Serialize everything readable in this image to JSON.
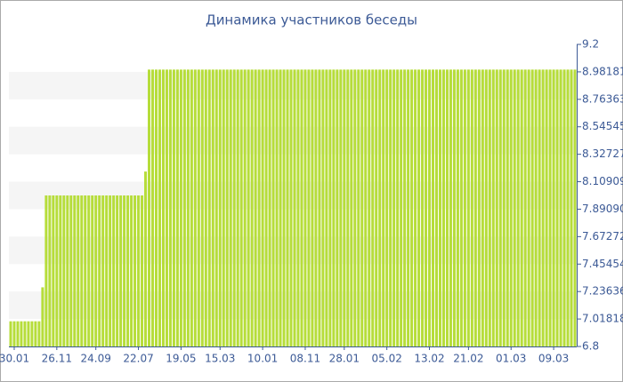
{
  "chart_data": {
    "type": "bar",
    "title": "Динамика участников беседы",
    "categories": [
      null,
      "30.01",
      null,
      null,
      null,
      null,
      null,
      null,
      null,
      null,
      null,
      null,
      null,
      "26.11",
      null,
      null,
      null,
      null,
      null,
      null,
      null,
      null,
      null,
      null,
      "24.09",
      null,
      null,
      null,
      null,
      null,
      null,
      null,
      null,
      null,
      null,
      null,
      "22.07",
      null,
      null,
      null,
      null,
      null,
      null,
      null,
      null,
      null,
      null,
      null,
      "19.05",
      null,
      null,
      null,
      null,
      null,
      null,
      null,
      null,
      null,
      null,
      "15.03",
      null,
      null,
      null,
      null,
      null,
      null,
      null,
      null,
      null,
      null,
      null,
      "10.01",
      null,
      null,
      null,
      null,
      null,
      null,
      null,
      null,
      null,
      null,
      null,
      "08.11",
      null,
      null,
      null,
      null,
      null,
      null,
      null,
      null,
      null,
      null,
      "28.01",
      null,
      null,
      null,
      null,
      null,
      null,
      null,
      null,
      null,
      null,
      null,
      "05.02",
      null,
      null,
      null,
      null,
      null,
      null,
      null,
      null,
      null,
      null,
      null,
      "13.02",
      null,
      null,
      null,
      null,
      null,
      null,
      null,
      null,
      null,
      null,
      "21.02",
      null,
      null,
      null,
      null,
      null,
      null,
      null,
      null,
      null,
      null,
      null,
      "01.03",
      null,
      null,
      null,
      null,
      null,
      null,
      null,
      null,
      null,
      null,
      null,
      "09.03",
      null,
      null,
      null,
      null,
      null,
      null
    ],
    "values": [
      7,
      7,
      7,
      7,
      7,
      7,
      7,
      7,
      7,
      7.27,
      8,
      8,
      8,
      8,
      8,
      8,
      8,
      8,
      8,
      8,
      8,
      8,
      8,
      8,
      8,
      8,
      8,
      8,
      8,
      8,
      8,
      8,
      8,
      8,
      8,
      8,
      8,
      8,
      8.19,
      9,
      9,
      9,
      9,
      9,
      9,
      9,
      9,
      9,
      9,
      9,
      9,
      9,
      9,
      9,
      9,
      9,
      9,
      9,
      9,
      9,
      9,
      9,
      9,
      9,
      9,
      9,
      9,
      9,
      9,
      9,
      9,
      9,
      9,
      9,
      9,
      9,
      9,
      9,
      9,
      9,
      9,
      9,
      9,
      9,
      9,
      9,
      9,
      9,
      9,
      9,
      9,
      9,
      9,
      9,
      9,
      9,
      9,
      9,
      9,
      9,
      9,
      9,
      9,
      9,
      9,
      9,
      9,
      9,
      9,
      9,
      9,
      9,
      9,
      9,
      9,
      9,
      9,
      9,
      9,
      9,
      9,
      9,
      9,
      9,
      9,
      9,
      9,
      9,
      9,
      9,
      9,
      9,
      9,
      9,
      9,
      9,
      9,
      9,
      9,
      9,
      9,
      9,
      9,
      9,
      9,
      9,
      9,
      9,
      9,
      9,
      9,
      9,
      9,
      9,
      9,
      9,
      9,
      9,
      9,
      9
    ],
    "color": "#b6dd3a",
    "ylim": [
      6.8,
      9.2
    ],
    "yticks": [
      6.8,
      7.01818,
      7.23636,
      7.45454,
      7.67272,
      {
        "value": 7.8909,
        "label": "7.89090"
      },
      8.10909,
      8.32727,
      8.54545,
      8.76363,
      8.98181,
      9.2
    ],
    "grid": true
  }
}
